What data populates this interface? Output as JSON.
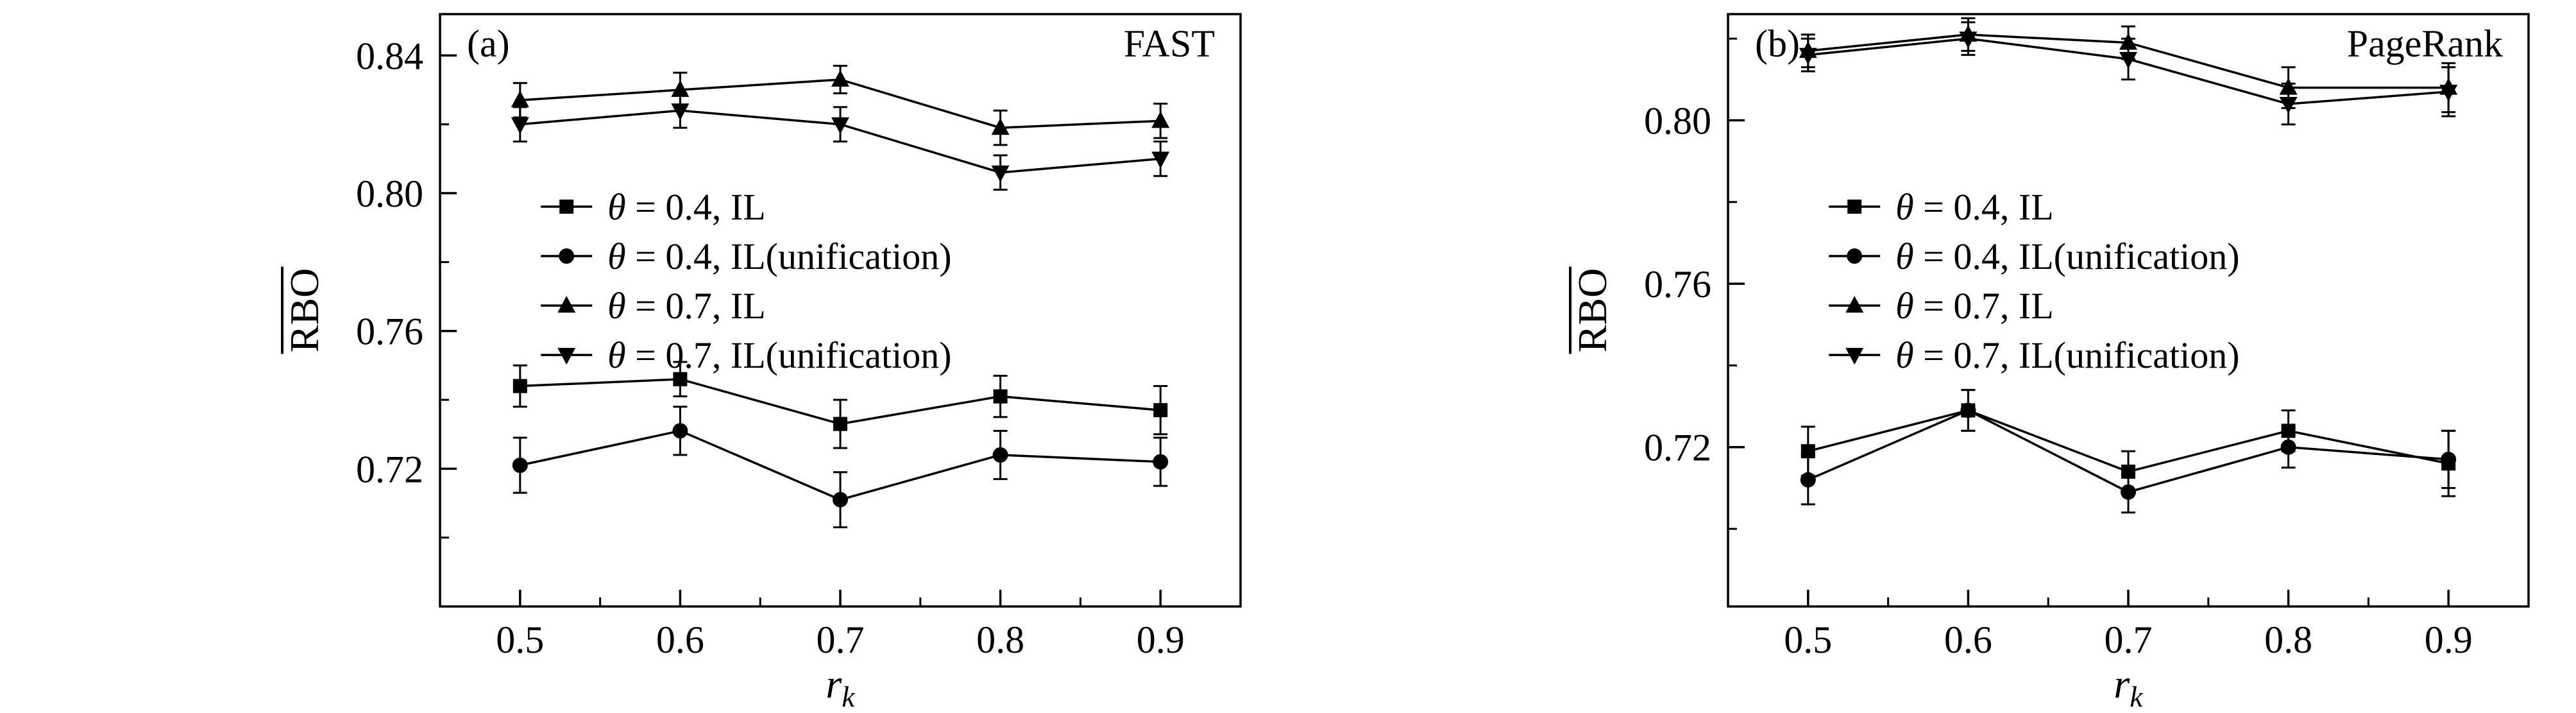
{
  "page": {
    "background": "#ffffff",
    "ink": "#000000"
  },
  "chart_data": [
    {
      "type": "line",
      "panel_label": "(a)",
      "corner_label": "FAST",
      "xlabel_base": "r",
      "xlabel_sub": "k",
      "ylabel": "RBO",
      "ylabel_overline": true,
      "x": [
        0.5,
        0.6,
        0.7,
        0.8,
        0.9
      ],
      "xtick_labels": [
        "0.5",
        "0.6",
        "0.7",
        "0.8",
        "0.9"
      ],
      "xlim": [
        0.45,
        0.95
      ],
      "ylim": [
        0.68,
        0.852
      ],
      "yticks": [
        0.72,
        0.76,
        0.8,
        0.84
      ],
      "ytick_labels": [
        "0.72",
        "0.76",
        "0.80",
        "0.84"
      ],
      "xminor_step": 0.05,
      "yminor_step": 0.02,
      "grid": false,
      "legend_position": "upper-left-inside",
      "series": [
        {
          "name": "θ = 0.4, IL",
          "marker": "square",
          "values": [
            0.744,
            0.746,
            0.733,
            0.741,
            0.737
          ],
          "errors": [
            0.006,
            0.005,
            0.007,
            0.006,
            0.007
          ]
        },
        {
          "name": "θ = 0.4, IL(unification)",
          "marker": "circle",
          "values": [
            0.721,
            0.731,
            0.711,
            0.724,
            0.722
          ],
          "errors": [
            0.008,
            0.007,
            0.008,
            0.007,
            0.007
          ]
        },
        {
          "name": "θ = 0.7, IL",
          "marker": "triangle-up",
          "values": [
            0.827,
            0.83,
            0.833,
            0.819,
            0.821
          ],
          "errors": [
            0.005,
            0.005,
            0.004,
            0.005,
            0.005
          ]
        },
        {
          "name": "θ = 0.7, IL(unification)",
          "marker": "triangle-down",
          "values": [
            0.82,
            0.824,
            0.82,
            0.806,
            0.81
          ],
          "errors": [
            0.005,
            0.005,
            0.005,
            0.005,
            0.005
          ]
        }
      ]
    },
    {
      "type": "line",
      "panel_label": "(b)",
      "corner_label": "PageRank",
      "xlabel_base": "r",
      "xlabel_sub": "k",
      "ylabel": "RBO",
      "ylabel_overline": true,
      "x": [
        0.5,
        0.6,
        0.7,
        0.8,
        0.9
      ],
      "xtick_labels": [
        "0.5",
        "0.6",
        "0.7",
        "0.8",
        "0.9"
      ],
      "xlim": [
        0.45,
        0.95
      ],
      "ylim": [
        0.681,
        0.826
      ],
      "yticks": [
        0.72,
        0.76,
        0.8
      ],
      "ytick_labels": [
        "0.72",
        "0.76",
        "0.80"
      ],
      "xminor_step": 0.05,
      "yminor_step": 0.02,
      "grid": false,
      "legend_position": "upper-left-inside",
      "series": [
        {
          "name": "θ = 0.4, IL",
          "marker": "square",
          "values": [
            0.719,
            0.729,
            0.714,
            0.724,
            0.716
          ],
          "errors": [
            0.006,
            0.005,
            0.005,
            0.005,
            0.008
          ]
        },
        {
          "name": "θ = 0.4, IL(unification)",
          "marker": "circle",
          "values": [
            0.712,
            0.729,
            0.709,
            0.72,
            0.717
          ],
          "errors": [
            0.006,
            0.005,
            0.005,
            0.005,
            0.007
          ]
        },
        {
          "name": "θ = 0.7, IL",
          "marker": "triangle-up",
          "values": [
            0.817,
            0.821,
            0.819,
            0.808,
            0.808
          ],
          "errors": [
            0.004,
            0.004,
            0.004,
            0.005,
            0.006
          ]
        },
        {
          "name": "θ = 0.7, IL(unification)",
          "marker": "triangle-down",
          "values": [
            0.816,
            0.82,
            0.815,
            0.804,
            0.807
          ],
          "errors": [
            0.004,
            0.004,
            0.005,
            0.005,
            0.006
          ]
        }
      ]
    }
  ]
}
